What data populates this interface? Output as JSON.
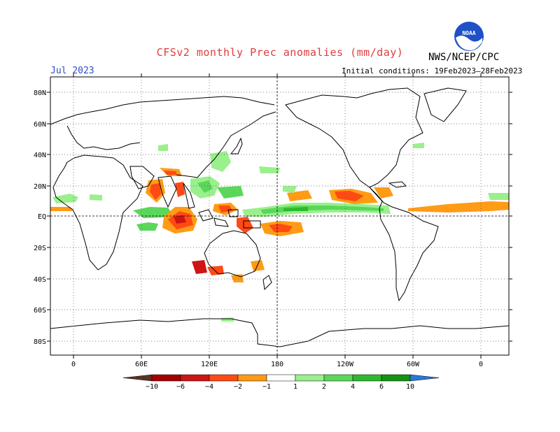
{
  "header": {
    "title": "CFSv2 monthly Prec anomalies (mm/day)",
    "agency": "NWS/NCEP/CPC",
    "month": "Jul 2023",
    "initial_conditions": "Initial conditions: 19Feb2023–28Feb2023"
  },
  "logo": {
    "text": "NOAA"
  },
  "map": {
    "lat_labels": [
      "80N",
      "60N",
      "40N",
      "20N",
      "EQ",
      "20S",
      "40S",
      "60S",
      "80S"
    ],
    "lon_labels": [
      "0",
      "60E",
      "120E",
      "180",
      "120W",
      "60W",
      "0"
    ]
  },
  "colorbar": {
    "tick_labels": [
      "−10",
      "−6",
      "−4",
      "−2",
      "−1",
      "1",
      "2",
      "4",
      "6",
      "10"
    ],
    "colors": [
      "#5a3324",
      "#a50000",
      "#cf1414",
      "#ff4a14",
      "#ff9b14",
      "#ffffff",
      "#9af08c",
      "#5ad75a",
      "#2db92d",
      "#129312",
      "#2a78d8"
    ]
  }
}
